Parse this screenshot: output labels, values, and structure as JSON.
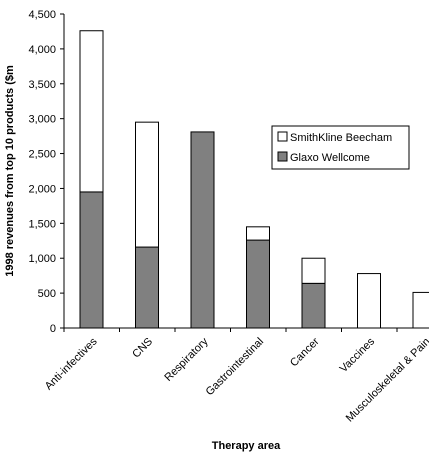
{
  "chart_data": {
    "type": "bar",
    "stacked": true,
    "categories": [
      "Anti-infectives",
      "CNS",
      "Respiratory",
      "Gastrointestinal",
      "Cancer",
      "Vaccines",
      "Musculoskeletal & Pain"
    ],
    "series": [
      {
        "name": "Glaxo Wellcome",
        "color": "#808080",
        "values": [
          1950,
          1160,
          2810,
          1260,
          640,
          0,
          0
        ]
      },
      {
        "name": "SmithKline Beecham",
        "color": "#ffffff",
        "values": [
          2310,
          1790,
          0,
          190,
          360,
          780,
          510
        ]
      }
    ],
    "xlabel": "Therapy area",
    "ylabel": "1998 revenues from top 10 products ($m",
    "ylim": [
      0,
      4500
    ],
    "yticks": [
      0,
      500,
      1000,
      1500,
      2000,
      2500,
      3000,
      3500,
      4000,
      4500
    ],
    "ytick_labels": [
      "0",
      "500",
      "1,000",
      "1,500",
      "2,000",
      "2,500",
      "3,000",
      "3,500",
      "4,000",
      "4,500"
    ],
    "legend": {
      "position": "right",
      "entries": [
        "SmithKline Beecham",
        "Glaxo Wellcome"
      ]
    },
    "grid": false
  }
}
